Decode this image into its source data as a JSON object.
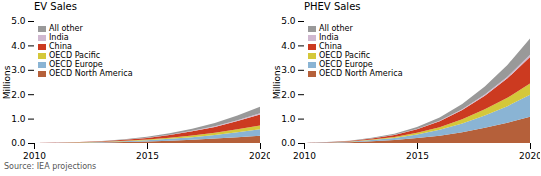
{
  "chart_data": [
    {
      "type": "area",
      "title": "EV Sales",
      "ylabel": "Millions",
      "x": [
        2010,
        2011,
        2012,
        2013,
        2014,
        2015,
        2016,
        2017,
        2018,
        2019,
        2020
      ],
      "series": [
        {
          "name": "OECD North America",
          "color": "#b5603a",
          "values": [
            0.0,
            0.005,
            0.01,
            0.02,
            0.04,
            0.06,
            0.09,
            0.13,
            0.18,
            0.24,
            0.3
          ]
        },
        {
          "name": "OECD Europe",
          "color": "#8ab4d4",
          "values": [
            0.0,
            0.005,
            0.01,
            0.02,
            0.03,
            0.05,
            0.08,
            0.11,
            0.15,
            0.2,
            0.26
          ]
        },
        {
          "name": "OECD Pacific",
          "color": "#d4c83a",
          "values": [
            0.0,
            0.003,
            0.006,
            0.01,
            0.02,
            0.03,
            0.05,
            0.07,
            0.09,
            0.12,
            0.16
          ]
        },
        {
          "name": "China",
          "color": "#cc3a20",
          "values": [
            0.0,
            0.005,
            0.01,
            0.02,
            0.04,
            0.07,
            0.11,
            0.17,
            0.24,
            0.34,
            0.45
          ]
        },
        {
          "name": "India",
          "color": "#d0b8d0",
          "values": [
            0.0,
            0.001,
            0.002,
            0.003,
            0.005,
            0.008,
            0.012,
            0.018,
            0.025,
            0.034,
            0.045
          ]
        },
        {
          "name": "All other",
          "color": "#999999",
          "values": [
            0.0,
            0.003,
            0.007,
            0.013,
            0.022,
            0.035,
            0.055,
            0.085,
            0.13,
            0.19,
            0.27
          ]
        }
      ],
      "xlim": [
        2010,
        2020
      ],
      "xticks": [
        2010,
        2015,
        2020
      ],
      "ylim": [
        0,
        5
      ],
      "yticks": [
        0,
        1,
        2,
        3,
        4,
        5
      ],
      "stacked": true,
      "legend": "upper left",
      "grid": false
    },
    {
      "type": "area",
      "title": "PHEV Sales",
      "ylabel": "Millions",
      "x": [
        2010,
        2011,
        2012,
        2013,
        2014,
        2015,
        2016,
        2017,
        2018,
        2019,
        2020
      ],
      "series": [
        {
          "name": "OECD North America",
          "color": "#b5603a",
          "values": [
            0.0,
            0.01,
            0.03,
            0.07,
            0.12,
            0.2,
            0.3,
            0.44,
            0.62,
            0.83,
            1.08
          ]
        },
        {
          "name": "OECD Europe",
          "color": "#8ab4d4",
          "values": [
            0.0,
            0.01,
            0.02,
            0.05,
            0.09,
            0.15,
            0.24,
            0.36,
            0.51,
            0.68,
            0.9
          ]
        },
        {
          "name": "OECD Pacific",
          "color": "#d4c83a",
          "values": [
            0.0,
            0.005,
            0.012,
            0.025,
            0.04,
            0.07,
            0.11,
            0.17,
            0.25,
            0.34,
            0.46
          ]
        },
        {
          "name": "China",
          "color": "#cc3a20",
          "values": [
            0.0,
            0.008,
            0.018,
            0.04,
            0.08,
            0.14,
            0.24,
            0.38,
            0.56,
            0.8,
            1.08
          ]
        },
        {
          "name": "India",
          "color": "#d0b8d0",
          "values": [
            0.0,
            0.001,
            0.002,
            0.004,
            0.007,
            0.012,
            0.02,
            0.032,
            0.048,
            0.068,
            0.092
          ]
        },
        {
          "name": "All other",
          "color": "#999999",
          "values": [
            0.0,
            0.005,
            0.012,
            0.025,
            0.045,
            0.08,
            0.135,
            0.215,
            0.33,
            0.48,
            0.67
          ]
        }
      ],
      "xlim": [
        2010,
        2020
      ],
      "xticks": [
        2010,
        2015,
        2020
      ],
      "ylim": [
        0,
        5
      ],
      "yticks": [
        0,
        1,
        2,
        3,
        4,
        5
      ],
      "stacked": true,
      "legend": "upper left",
      "grid": false
    }
  ],
  "caption": "Source: IEA projections"
}
